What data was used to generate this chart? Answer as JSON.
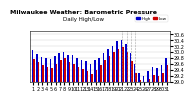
{
  "title": "Milwaukee Weather: Barometric Pressure",
  "subtitle": "Daily High/Low",
  "legend_high": "High",
  "legend_low": "Low",
  "background_color": "#ffffff",
  "plot_bg": "#ffffff",
  "bar_width": 0.35,
  "high_color": "#0000cc",
  "low_color": "#cc0000",
  "ylim": [
    29.0,
    30.7
  ],
  "yticks": [
    29.0,
    29.2,
    29.4,
    29.6,
    29.8,
    30.0,
    30.2,
    30.4,
    30.6
  ],
  "days": [
    1,
    2,
    3,
    4,
    5,
    6,
    7,
    8,
    9,
    10,
    11,
    12,
    13,
    14,
    15,
    16,
    17,
    18,
    19,
    20,
    21,
    22,
    23,
    24,
    25,
    26,
    27,
    28,
    29,
    30,
    31
  ],
  "highs": [
    30.05,
    29.92,
    29.82,
    29.8,
    29.75,
    29.85,
    29.95,
    30.0,
    29.9,
    29.88,
    29.78,
    29.72,
    29.68,
    29.6,
    29.72,
    29.8,
    29.95,
    30.1,
    30.2,
    30.35,
    30.4,
    30.25,
    29.95,
    29.6,
    29.3,
    29.2,
    29.35,
    29.5,
    29.45,
    29.55,
    29.8
  ],
  "lows": [
    29.75,
    29.65,
    29.55,
    29.5,
    29.45,
    29.6,
    29.72,
    29.78,
    29.65,
    29.6,
    29.48,
    29.42,
    29.35,
    29.25,
    29.4,
    29.55,
    29.72,
    29.85,
    30.0,
    30.1,
    30.15,
    30.0,
    29.7,
    29.3,
    29.05,
    29.0,
    29.1,
    29.22,
    29.2,
    29.3,
    29.55
  ],
  "dashed_days": [
    21,
    22,
    23,
    24
  ],
  "title_fontsize": 4.5,
  "tick_fontsize": 3.5,
  "ylabel_fontsize": 3.5
}
